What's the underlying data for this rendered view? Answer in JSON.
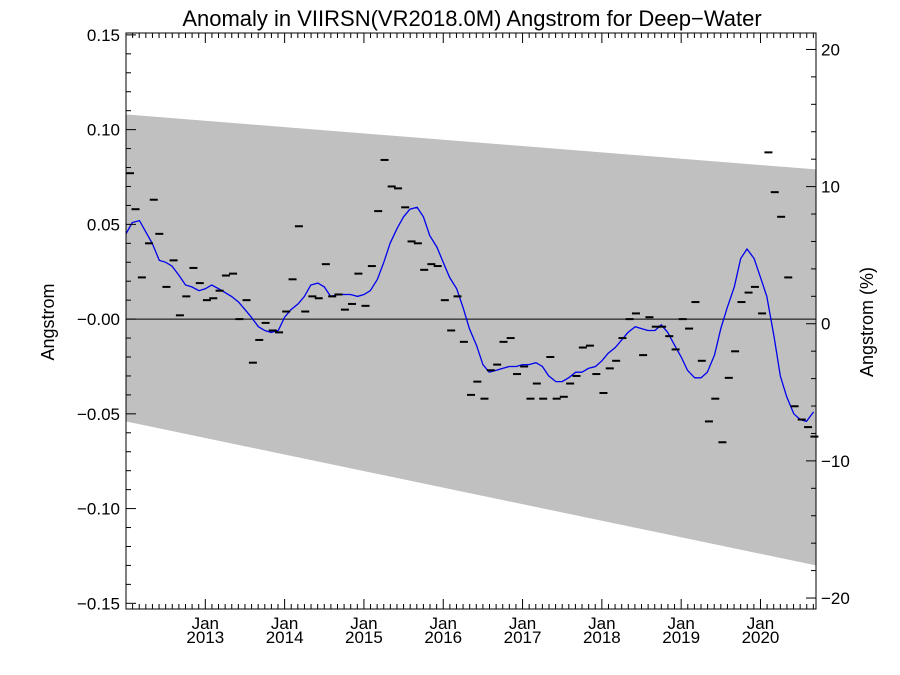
{
  "chart_data": {
    "type": "line",
    "title": "Anomaly in VIIRSN(VR2018.0M) Angstrom for Deep−Water",
    "ylabel": "Angstrom",
    "y2label": "Angstrom (%)",
    "xlabel": "",
    "ylim": [
      -0.153,
      0.151
    ],
    "y2lim": [
      -20.8,
      21.2
    ],
    "xlim": [
      2012.0,
      2020.7
    ],
    "yticks": [
      {
        "v": 0.15,
        "label": "0.15"
      },
      {
        "v": 0.1,
        "label": "0.10"
      },
      {
        "v": 0.05,
        "label": "0.05"
      },
      {
        "v": 0.0,
        "label": "−0.00"
      },
      {
        "v": -0.05,
        "label": "−0.05"
      },
      {
        "v": -0.1,
        "label": "−0.10"
      },
      {
        "v": -0.15,
        "label": "−0.15"
      }
    ],
    "y2ticks": [
      {
        "v": 20,
        "label": "20"
      },
      {
        "v": 10,
        "label": "10"
      },
      {
        "v": 0,
        "label": "0"
      },
      {
        "v": -10,
        "label": "−10"
      },
      {
        "v": -20,
        "label": "−20"
      }
    ],
    "xticks": [
      {
        "v": 2013.0,
        "label1": "Jan",
        "label2": "2013"
      },
      {
        "v": 2014.0,
        "label1": "Jan",
        "label2": "2014"
      },
      {
        "v": 2015.0,
        "label1": "Jan",
        "label2": "2015"
      },
      {
        "v": 2016.0,
        "label1": "Jan",
        "label2": "2016"
      },
      {
        "v": 2017.0,
        "label1": "Jan",
        "label2": "2017"
      },
      {
        "v": 2018.0,
        "label1": "Jan",
        "label2": "2018"
      },
      {
        "v": 2019.0,
        "label1": "Jan",
        "label2": "2019"
      },
      {
        "v": 2020.0,
        "label1": "Jan",
        "label2": "2020"
      }
    ],
    "zero_line": 0,
    "band": {
      "x": [
        2012.0,
        2020.7
      ],
      "upper": [
        0.108,
        0.079
      ],
      "lower": [
        -0.054,
        -0.13
      ],
      "color": "#c0c0c0"
    },
    "series": [
      {
        "type": "line",
        "color": "#0000ee",
        "x": [
          2012.0,
          2012.08,
          2012.17,
          2012.25,
          2012.33,
          2012.42,
          2012.5,
          2012.58,
          2012.67,
          2012.75,
          2012.83,
          2012.92,
          2013.0,
          2013.08,
          2013.17,
          2013.25,
          2013.33,
          2013.42,
          2013.5,
          2013.58,
          2013.67,
          2013.75,
          2013.83,
          2013.92,
          2014.0,
          2014.08,
          2014.17,
          2014.25,
          2014.33,
          2014.42,
          2014.5,
          2014.58,
          2014.67,
          2014.75,
          2014.83,
          2014.92,
          2015.0,
          2015.08,
          2015.17,
          2015.25,
          2015.33,
          2015.42,
          2015.5,
          2015.58,
          2015.67,
          2015.75,
          2015.83,
          2015.92,
          2016.0,
          2016.08,
          2016.17,
          2016.25,
          2016.33,
          2016.42,
          2016.5,
          2016.58,
          2016.67,
          2016.75,
          2016.83,
          2016.92,
          2017.0,
          2017.08,
          2017.17,
          2017.25,
          2017.33,
          2017.42,
          2017.5,
          2017.58,
          2017.67,
          2017.75,
          2017.83,
          2017.92,
          2018.0,
          2018.08,
          2018.17,
          2018.25,
          2018.33,
          2018.42,
          2018.5,
          2018.58,
          2018.67,
          2018.75,
          2018.83,
          2018.92,
          2019.0,
          2019.08,
          2019.17,
          2019.25,
          2019.33,
          2019.42,
          2019.5,
          2019.58,
          2019.67,
          2019.75,
          2019.83,
          2019.92,
          2020.0,
          2020.08,
          2020.17,
          2020.25,
          2020.33,
          2020.42,
          2020.5,
          2020.58,
          2020.67
        ],
        "values": [
          0.045,
          0.051,
          0.052,
          0.046,
          0.04,
          0.031,
          0.03,
          0.028,
          0.023,
          0.018,
          0.017,
          0.015,
          0.016,
          0.018,
          0.016,
          0.014,
          0.012,
          0.009,
          0.005,
          0.001,
          -0.004,
          -0.006,
          -0.007,
          -0.006,
          0.001,
          0.005,
          0.008,
          0.012,
          0.018,
          0.019,
          0.017,
          0.012,
          0.013,
          0.013,
          0.013,
          0.012,
          0.013,
          0.015,
          0.021,
          0.03,
          0.04,
          0.048,
          0.054,
          0.058,
          0.059,
          0.054,
          0.044,
          0.038,
          0.03,
          0.022,
          0.016,
          0.006,
          -0.005,
          -0.014,
          -0.024,
          -0.028,
          -0.027,
          -0.026,
          -0.025,
          -0.025,
          -0.024,
          -0.024,
          -0.023,
          -0.025,
          -0.03,
          -0.033,
          -0.033,
          -0.031,
          -0.028,
          -0.028,
          -0.026,
          -0.025,
          -0.022,
          -0.018,
          -0.015,
          -0.011,
          -0.007,
          -0.004,
          -0.005,
          -0.006,
          -0.006,
          -0.003,
          -0.007,
          -0.014,
          -0.02,
          -0.027,
          -0.031,
          -0.031,
          -0.028,
          -0.019,
          -0.005,
          0.006,
          0.017,
          0.032,
          0.037,
          0.032,
          0.022,
          0.012,
          -0.009,
          -0.03,
          -0.041,
          -0.05,
          -0.053,
          -0.054,
          -0.049
        ]
      },
      {
        "type": "dash-markers",
        "color": "#000000",
        "x": [
          2012.05,
          2012.12,
          2012.2,
          2012.29,
          2012.35,
          2012.42,
          2012.51,
          2012.6,
          2012.68,
          2012.76,
          2012.85,
          2012.93,
          2013.02,
          2013.1,
          2013.18,
          2013.26,
          2013.35,
          2013.43,
          2013.52,
          2013.6,
          2013.68,
          2013.76,
          2013.85,
          2013.93,
          2014.02,
          2014.1,
          2014.18,
          2014.26,
          2014.35,
          2014.43,
          2014.52,
          2014.6,
          2014.68,
          2014.76,
          2014.85,
          2014.93,
          2015.02,
          2015.1,
          2015.18,
          2015.26,
          2015.35,
          2015.43,
          2015.52,
          2015.6,
          2015.68,
          2015.76,
          2015.85,
          2015.93,
          2016.02,
          2016.1,
          2016.18,
          2016.26,
          2016.35,
          2016.43,
          2016.52,
          2016.6,
          2016.68,
          2016.76,
          2016.85,
          2016.93,
          2017.02,
          2017.1,
          2017.18,
          2017.26,
          2017.35,
          2017.43,
          2017.52,
          2017.6,
          2017.68,
          2017.76,
          2017.85,
          2017.93,
          2018.02,
          2018.1,
          2018.18,
          2018.26,
          2018.35,
          2018.43,
          2018.52,
          2018.6,
          2018.68,
          2018.76,
          2018.85,
          2018.93,
          2019.02,
          2019.1,
          2019.18,
          2019.26,
          2019.35,
          2019.43,
          2019.52,
          2019.6,
          2019.68,
          2019.76,
          2019.85,
          2019.93,
          2020.02,
          2020.1,
          2020.18,
          2020.26,
          2020.35,
          2020.43,
          2020.52,
          2020.6,
          2020.68
        ],
        "values": [
          0.077,
          0.058,
          0.022,
          0.04,
          0.063,
          0.045,
          0.017,
          0.031,
          0.002,
          0.012,
          0.027,
          0.019,
          0.01,
          0.011,
          0.015,
          0.023,
          0.024,
          0.0,
          0.01,
          -0.023,
          -0.011,
          -0.002,
          -0.006,
          -0.007,
          0.004,
          0.021,
          0.049,
          0.004,
          0.012,
          0.011,
          0.029,
          0.012,
          0.013,
          0.005,
          0.008,
          0.024,
          0.007,
          0.028,
          0.057,
          0.084,
          0.07,
          0.069,
          0.059,
          0.041,
          0.04,
          0.026,
          0.029,
          0.028,
          0.01,
          -0.006,
          0.012,
          -0.012,
          -0.04,
          -0.033,
          -0.042,
          -0.027,
          -0.024,
          -0.012,
          -0.01,
          -0.029,
          -0.025,
          -0.042,
          -0.034,
          -0.042,
          -0.02,
          -0.042,
          -0.041,
          -0.034,
          -0.03,
          -0.015,
          -0.014,
          -0.029,
          -0.039,
          -0.026,
          -0.022,
          -0.01,
          0.0,
          0.003,
          -0.019,
          0.001,
          -0.004,
          -0.004,
          -0.009,
          -0.016,
          0.0,
          -0.005,
          0.009,
          -0.022,
          -0.054,
          -0.042,
          -0.065,
          -0.031,
          -0.017,
          0.009,
          0.014,
          0.017,
          0.003,
          0.088,
          0.067,
          0.054,
          0.022,
          -0.046,
          -0.053,
          -0.057,
          -0.062
        ]
      }
    ]
  }
}
